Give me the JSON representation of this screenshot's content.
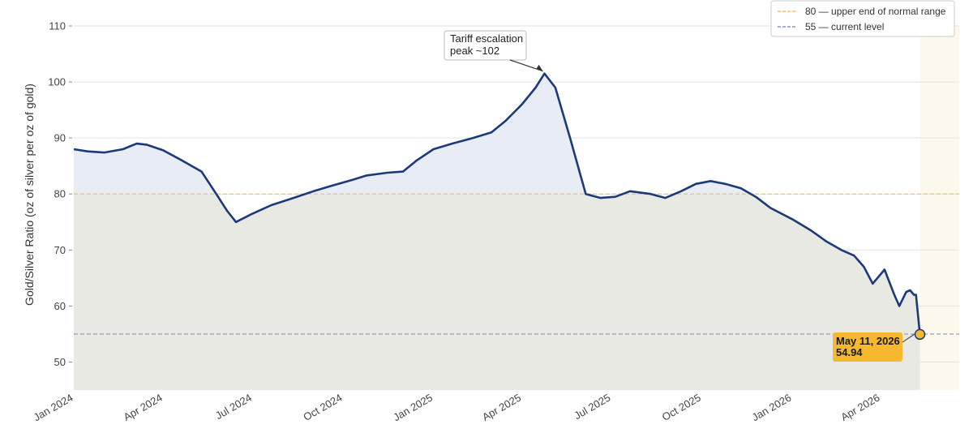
{
  "chart_data": {
    "type": "line",
    "title": "",
    "xlabel": "",
    "ylabel": "Gold/Silver Ratio (oz of silver per oz of gold)",
    "ylim": [
      45,
      110
    ],
    "xlim": [
      "2024-01-01",
      "2026-06-20"
    ],
    "yticks": [
      50,
      60,
      70,
      80,
      90,
      100,
      110
    ],
    "xticks": [
      {
        "date": "2024-01-01",
        "label": "Jan 2024"
      },
      {
        "date": "2024-04-01",
        "label": "Apr 2024"
      },
      {
        "date": "2024-07-01",
        "label": "Jul 2024"
      },
      {
        "date": "2024-10-01",
        "label": "Oct 2024"
      },
      {
        "date": "2025-01-01",
        "label": "Jan 2025"
      },
      {
        "date": "2025-04-01",
        "label": "Apr 2025"
      },
      {
        "date": "2025-07-01",
        "label": "Jul 2025"
      },
      {
        "date": "2025-10-01",
        "label": "Oct 2025"
      },
      {
        "date": "2026-01-01",
        "label": "Jan 2026"
      },
      {
        "date": "2026-04-01",
        "label": "Apr 2026"
      }
    ],
    "grid": "horizontal",
    "legend_position": "top-right",
    "series": [
      {
        "color": "#1a3a7a",
        "points": [
          [
            "2024-01-01",
            88.0
          ],
          [
            "2024-01-15",
            87.6
          ],
          [
            "2024-02-01",
            87.4
          ],
          [
            "2024-02-20",
            88.0
          ],
          [
            "2024-03-05",
            89.0
          ],
          [
            "2024-03-15",
            88.8
          ],
          [
            "2024-04-01",
            87.8
          ],
          [
            "2024-04-20",
            86.0
          ],
          [
            "2024-05-10",
            84.0
          ],
          [
            "2024-05-25",
            80.0
          ],
          [
            "2024-06-05",
            77.0
          ],
          [
            "2024-06-14",
            75.0
          ],
          [
            "2024-07-01",
            76.5
          ],
          [
            "2024-07-20",
            78.0
          ],
          [
            "2024-08-10",
            79.2
          ],
          [
            "2024-09-01",
            80.5
          ],
          [
            "2024-09-20",
            81.5
          ],
          [
            "2024-10-10",
            82.5
          ],
          [
            "2024-10-25",
            83.3
          ],
          [
            "2024-11-15",
            83.8
          ],
          [
            "2024-12-01",
            84.0
          ],
          [
            "2024-12-15",
            86.0
          ],
          [
            "2025-01-01",
            88.0
          ],
          [
            "2025-01-20",
            89.0
          ],
          [
            "2025-02-10",
            90.0
          ],
          [
            "2025-03-01",
            91.0
          ],
          [
            "2025-03-15",
            93.0
          ],
          [
            "2025-04-01",
            96.0
          ],
          [
            "2025-04-15",
            99.0
          ],
          [
            "2025-04-24",
            101.5
          ],
          [
            "2025-05-05",
            99.0
          ],
          [
            "2025-05-20",
            90.0
          ],
          [
            "2025-06-05",
            80.0
          ],
          [
            "2025-06-20",
            79.3
          ],
          [
            "2025-07-05",
            79.5
          ],
          [
            "2025-07-20",
            80.5
          ],
          [
            "2025-08-10",
            80.0
          ],
          [
            "2025-08-25",
            79.3
          ],
          [
            "2025-09-10",
            80.5
          ],
          [
            "2025-09-25",
            81.8
          ],
          [
            "2025-10-10",
            82.3
          ],
          [
            "2025-10-25",
            81.8
          ],
          [
            "2025-11-10",
            81.0
          ],
          [
            "2025-11-25",
            79.5
          ],
          [
            "2025-12-10",
            77.5
          ],
          [
            "2026-01-01",
            75.5
          ],
          [
            "2026-01-20",
            73.5
          ],
          [
            "2026-02-05",
            71.5
          ],
          [
            "2026-02-20",
            70.0
          ],
          [
            "2026-03-05",
            69.0
          ],
          [
            "2026-03-15",
            67.0
          ],
          [
            "2026-03-24",
            64.0
          ],
          [
            "2026-04-05",
            66.5
          ],
          [
            "2026-04-15",
            62.0
          ],
          [
            "2026-04-20",
            60.0
          ],
          [
            "2026-04-27",
            62.5
          ],
          [
            "2026-05-01",
            62.8
          ],
          [
            "2026-05-05",
            62.0
          ],
          [
            "2026-05-07",
            62.0
          ],
          [
            "2026-05-11",
            54.94
          ]
        ]
      }
    ],
    "reference_lines": [
      {
        "value": 80,
        "label": "80 — upper end of normal range",
        "color": "#f2c26b"
      },
      {
        "value": 55,
        "label": "55 — current level",
        "color": "#8c97b8"
      }
    ],
    "annotations": [
      {
        "date": "2025-04-24",
        "value": 101.5,
        "lines": [
          "Tariff escalation",
          "peak ~102"
        ]
      }
    ],
    "callout": {
      "date": "2026-05-11",
      "value": 54.94,
      "lines": [
        "May 11, 2026",
        "54.94"
      ],
      "color": "#f5b82e"
    },
    "colors": {
      "above_fill": "#e8edf5",
      "below_fill": "#e9e9e4",
      "right_band": "#fdf8ec",
      "grid": "#e2e2e2"
    }
  }
}
